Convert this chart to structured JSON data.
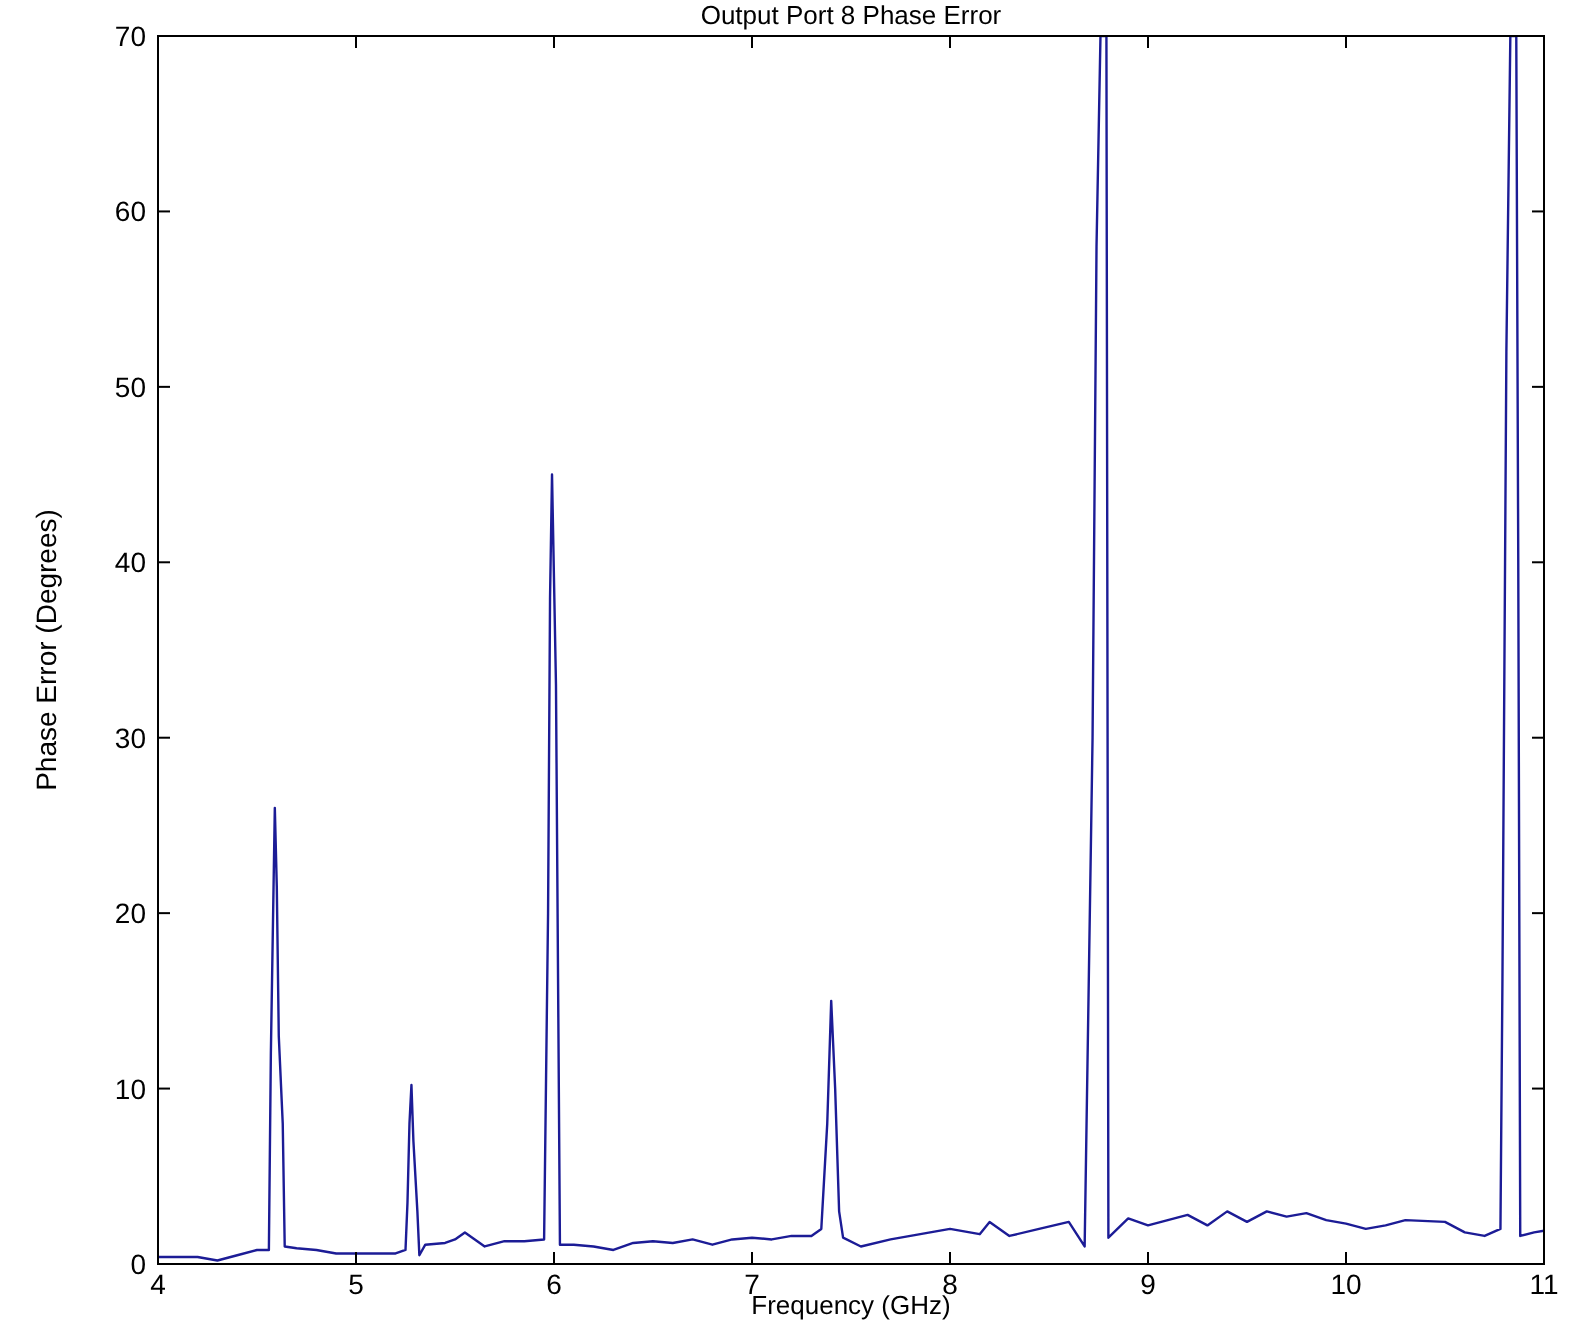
{
  "chart_data": {
    "type": "line",
    "title": "Output Port 8 Phase Error",
    "xlabel": "Frequency (GHz)",
    "ylabel": "Phase Error (Degrees)",
    "xlim": [
      4,
      11
    ],
    "ylim": [
      0,
      70
    ],
    "xticks": [
      4,
      5,
      6,
      7,
      8,
      9,
      10,
      11
    ],
    "yticks": [
      0,
      10,
      20,
      30,
      40,
      50,
      60,
      70
    ],
    "grid": false,
    "marker": "none",
    "line_style": "solid",
    "series": [
      {
        "color": "#1c1c96",
        "x": [
          4.0,
          4.1,
          4.2,
          4.3,
          4.4,
          4.5,
          4.56,
          4.57,
          4.59,
          4.6,
          4.61,
          4.63,
          4.64,
          4.7,
          4.8,
          4.9,
          5.0,
          5.1,
          5.2,
          5.25,
          5.26,
          5.27,
          5.28,
          5.29,
          5.31,
          5.32,
          5.35,
          5.45,
          5.5,
          5.55,
          5.65,
          5.75,
          5.85,
          5.95,
          5.97,
          5.98,
          5.99,
          6.01,
          6.03,
          6.1,
          6.2,
          6.3,
          6.4,
          6.5,
          6.6,
          6.7,
          6.8,
          6.9,
          7.0,
          7.1,
          7.2,
          7.3,
          7.35,
          7.38,
          7.4,
          7.42,
          7.44,
          7.46,
          7.55,
          7.7,
          7.9,
          8.0,
          8.1,
          8.15,
          8.2,
          8.3,
          8.45,
          8.6,
          8.68,
          8.72,
          8.74,
          8.76,
          8.79,
          8.8,
          8.9,
          9.0,
          9.1,
          9.2,
          9.3,
          9.4,
          9.5,
          9.6,
          9.7,
          9.8,
          9.9,
          10.0,
          10.1,
          10.2,
          10.3,
          10.5,
          10.6,
          10.7,
          10.78,
          10.79,
          10.81,
          10.83,
          10.86,
          10.87,
          10.88,
          10.95,
          11.0
        ],
        "values": [
          0.4,
          0.4,
          0.4,
          0.2,
          0.5,
          0.8,
          0.8,
          12,
          26,
          21.5,
          13,
          8,
          1,
          0.9,
          0.8,
          0.6,
          0.6,
          0.6,
          0.6,
          0.8,
          3.5,
          8,
          10.2,
          7,
          3,
          0.5,
          1.1,
          1.2,
          1.4,
          1.8,
          1.0,
          1.3,
          1.3,
          1.4,
          20,
          38,
          45,
          33,
          1.1,
          1.1,
          1.0,
          0.8,
          1.2,
          1.3,
          1.2,
          1.4,
          1.1,
          1.4,
          1.5,
          1.4,
          1.6,
          1.6,
          2,
          8,
          15,
          10,
          3,
          1.5,
          1.0,
          1.4,
          1.8,
          2.0,
          1.8,
          1.7,
          2.4,
          1.6,
          2.0,
          2.4,
          1.0,
          30,
          58,
          70,
          70,
          1.5,
          2.6,
          2.2,
          2.5,
          2.8,
          2.2,
          3.0,
          2.4,
          3.0,
          2.7,
          2.9,
          2.5,
          2.3,
          2.0,
          2.2,
          2.5,
          2.4,
          1.8,
          1.6,
          2.0,
          16,
          52,
          70,
          70,
          40,
          1.6,
          1.8,
          1.9
        ]
      }
    ]
  }
}
